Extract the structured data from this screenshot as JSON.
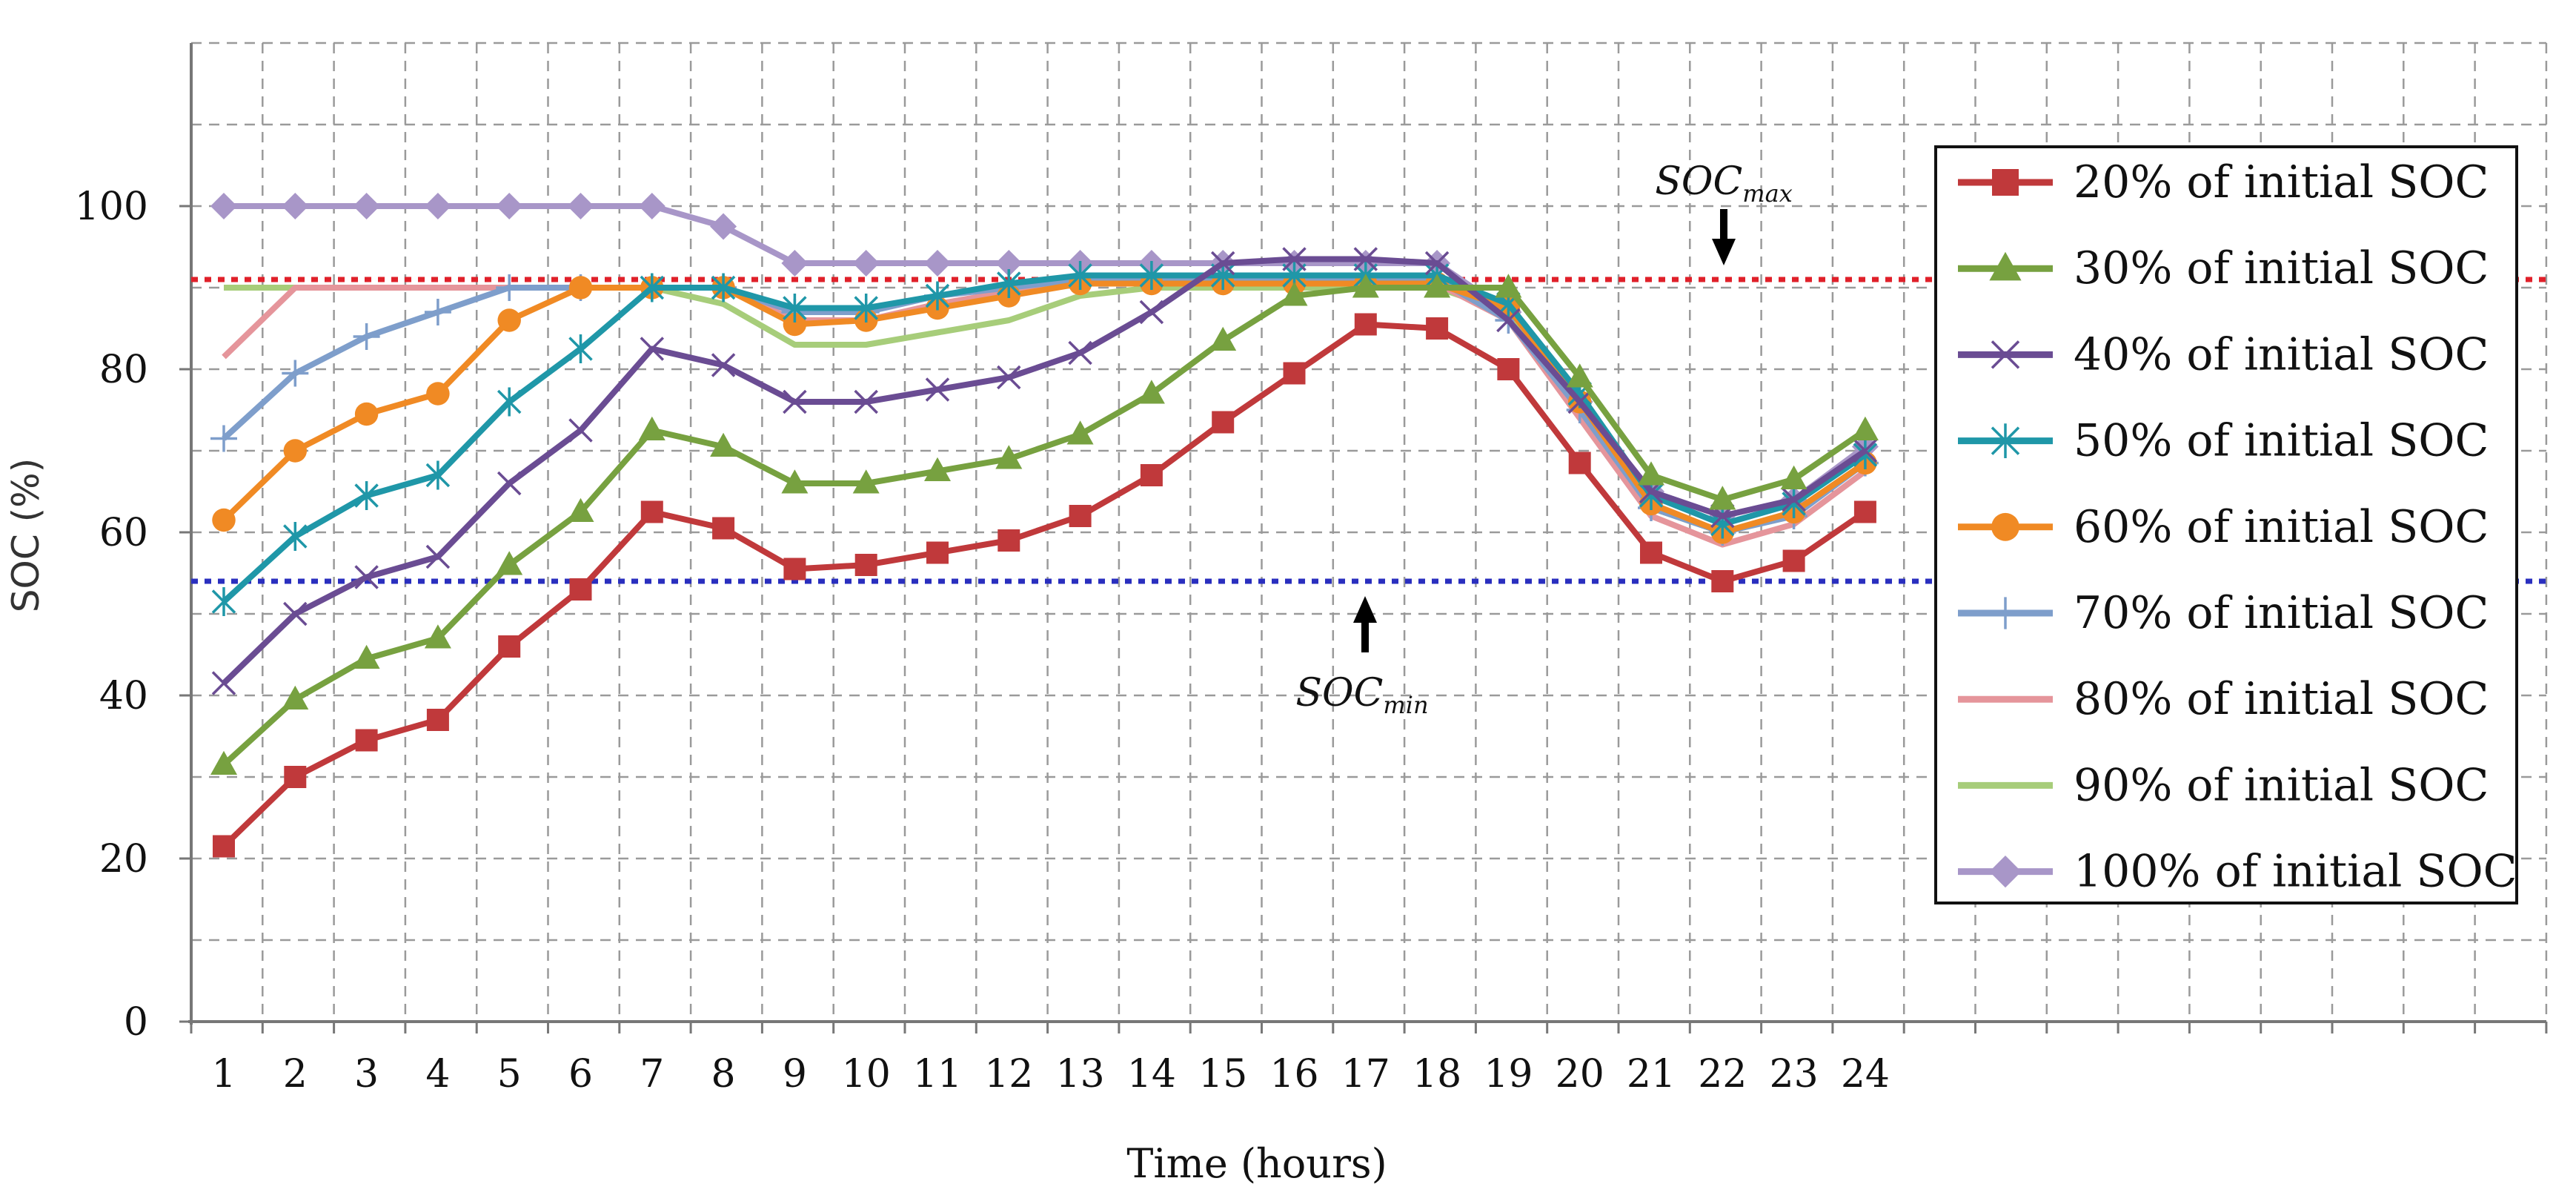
{
  "chart_data": {
    "type": "line",
    "title": "",
    "xlabel": "Time (hours)",
    "ylabel": "SOC (%)",
    "x": [
      1,
      2,
      3,
      4,
      5,
      6,
      7,
      8,
      9,
      10,
      11,
      12,
      13,
      14,
      15,
      16,
      17,
      18,
      19,
      20,
      21,
      22,
      23,
      24
    ],
    "x_tick_labels": [
      "1",
      "2",
      "3",
      "4",
      "5",
      "6",
      "7",
      "8",
      "9",
      "10",
      "11",
      "12",
      "13",
      "14",
      "15",
      "16",
      "17",
      "18",
      "19",
      "20",
      "21",
      "22",
      "23",
      "24"
    ],
    "y_tick_labels": [
      "0",
      "20",
      "40",
      "60",
      "80",
      "100"
    ],
    "y_ticks": [
      0,
      20,
      40,
      60,
      80,
      100
    ],
    "ylim": [
      0,
      120
    ],
    "grid": true,
    "legend_position": "right",
    "series": [
      {
        "name": "20% of initial SOC",
        "color": "#C0393B",
        "marker": "square",
        "values": [
          21.5,
          30,
          34.5,
          37,
          46,
          53,
          62.5,
          60.5,
          55.5,
          56,
          57.5,
          59,
          62,
          67,
          73.5,
          79.5,
          85.5,
          85,
          80,
          68.5,
          57.5,
          54,
          56.5,
          62.5
        ]
      },
      {
        "name": "30% of initial SOC",
        "color": "#77A140",
        "marker": "triangle",
        "values": [
          31.5,
          39.5,
          44.5,
          47,
          56,
          62.5,
          72.5,
          70.5,
          66,
          66,
          67.5,
          69,
          72,
          77,
          83.5,
          89,
          90,
          90,
          90,
          79,
          67,
          64,
          66.5,
          72.5
        ]
      },
      {
        "name": "40% of initial SOC",
        "color": "#6A4C93",
        "marker": "x",
        "values": [
          41.5,
          50,
          54.5,
          57,
          66,
          72.5,
          82.5,
          80.5,
          76,
          76,
          77.5,
          79,
          82,
          87,
          93,
          93.5,
          93.5,
          93,
          86,
          76,
          65,
          62,
          64,
          70
        ]
      },
      {
        "name": "50% of initial SOC",
        "color": "#1F97A8",
        "marker": "star",
        "values": [
          51.5,
          59.5,
          64.5,
          67,
          76,
          82.5,
          90,
          90,
          87.5,
          87.5,
          89,
          90.5,
          91.5,
          91.5,
          91.5,
          91.5,
          91.5,
          91.5,
          88,
          77,
          64.5,
          61,
          63.5,
          69.5
        ]
      },
      {
        "name": "60% of initial SOC",
        "color": "#F08A24",
        "marker": "circle",
        "values": [
          61.5,
          70,
          74.5,
          77,
          86,
          90,
          90,
          90,
          85.5,
          86,
          87.5,
          89,
          90.5,
          90.5,
          90.5,
          90.5,
          90.5,
          90.5,
          87.5,
          76,
          63.5,
          60,
          62.5,
          68.5
        ]
      },
      {
        "name": "70% of initial SOC",
        "color": "#7E9ECB",
        "marker": "plus",
        "values": [
          71.5,
          79.5,
          84,
          87,
          90,
          90,
          90,
          90,
          87,
          87,
          89,
          90,
          91,
          91,
          91,
          91,
          91,
          91,
          86,
          75,
          63,
          60,
          62,
          68.5
        ]
      },
      {
        "name": "80% of initial SOC",
        "color": "#E5959B",
        "marker": "none",
        "values": [
          81.5,
          90,
          90,
          90,
          90,
          90,
          90,
          90,
          86,
          86,
          88,
          89.5,
          90.5,
          90.5,
          90.5,
          90.5,
          90.5,
          90.5,
          86,
          74,
          62,
          58.5,
          61,
          67.5
        ]
      },
      {
        "name": "90% of initial SOC",
        "color": "#A7CD7A",
        "marker": "none",
        "values": [
          90,
          90,
          90,
          90,
          90,
          90,
          90,
          88,
          83,
          83,
          84.5,
          86,
          89,
          90,
          90,
          90,
          90,
          90,
          87,
          75,
          63,
          60,
          62.5,
          68.5
        ]
      },
      {
        "name": "100% of initial SOC",
        "color": "#A896C8",
        "marker": "diamond",
        "values": [
          100,
          100,
          100,
          100,
          100,
          100,
          100,
          97.5,
          93,
          93,
          93,
          93,
          93,
          93,
          93,
          93,
          93,
          93,
          87,
          76,
          65,
          62,
          64,
          70.5
        ]
      }
    ],
    "reference_lines": [
      {
        "label_main": "SOC",
        "label_sub": "max",
        "value": 91,
        "color": "#E0202A"
      },
      {
        "label_main": "SOC",
        "label_sub": "min",
        "value": 54,
        "color": "#2A2FBF"
      }
    ]
  }
}
